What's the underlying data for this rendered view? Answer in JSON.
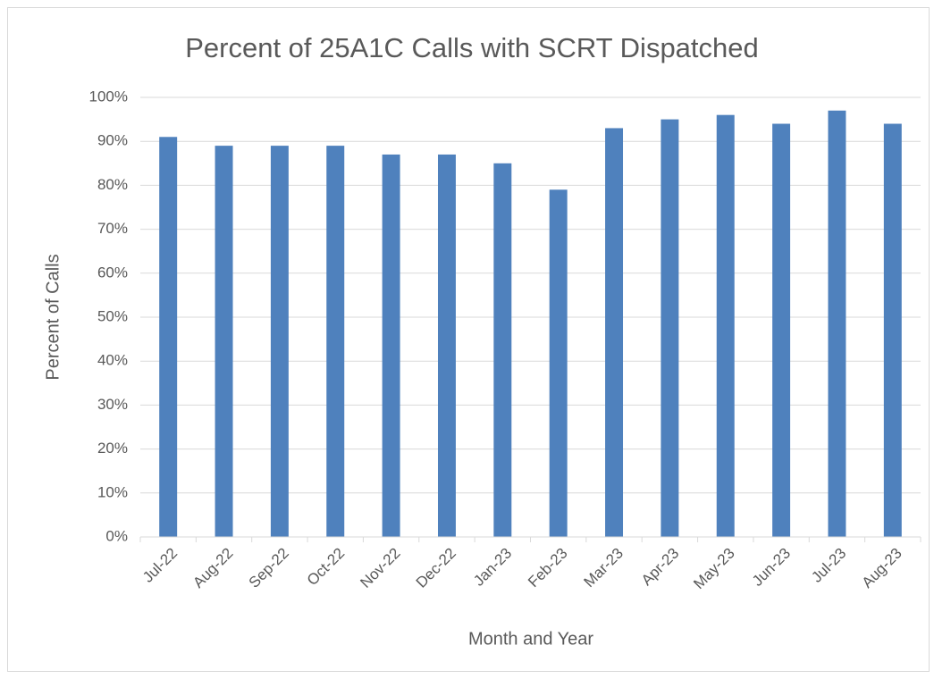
{
  "chart_data": {
    "type": "bar",
    "title": "Percent of 25A1C Calls with SCRT Dispatched",
    "x_label": "Month and Year",
    "y_label": "Percent of Calls",
    "categories": [
      "Jul-22",
      "Aug-22",
      "Sep-22",
      "Oct-22",
      "Nov-22",
      "Dec-22",
      "Jan-23",
      "Feb-23",
      "Mar-23",
      "Apr-23",
      "May-23",
      "Jun-23",
      "Jul-23",
      "Aug-23"
    ],
    "values": [
      91,
      89,
      89,
      89,
      87,
      87,
      85,
      79,
      93,
      95,
      96,
      94,
      97,
      94
    ],
    "color": "#4f81bd",
    "ylim": [
      0,
      100
    ],
    "yticks": [
      {
        "value": 0,
        "label": "0%"
      },
      {
        "value": 10,
        "label": "10%"
      },
      {
        "value": 20,
        "label": "20%"
      },
      {
        "value": 30,
        "label": "30%"
      },
      {
        "value": 40,
        "label": "40%"
      },
      {
        "value": 50,
        "label": "50%"
      },
      {
        "value": 60,
        "label": "60%"
      },
      {
        "value": 70,
        "label": "70%"
      },
      {
        "value": 80,
        "label": "80%"
      },
      {
        "value": 90,
        "label": "90%"
      },
      {
        "value": 100,
        "label": "100%"
      }
    ],
    "grid": true
  }
}
